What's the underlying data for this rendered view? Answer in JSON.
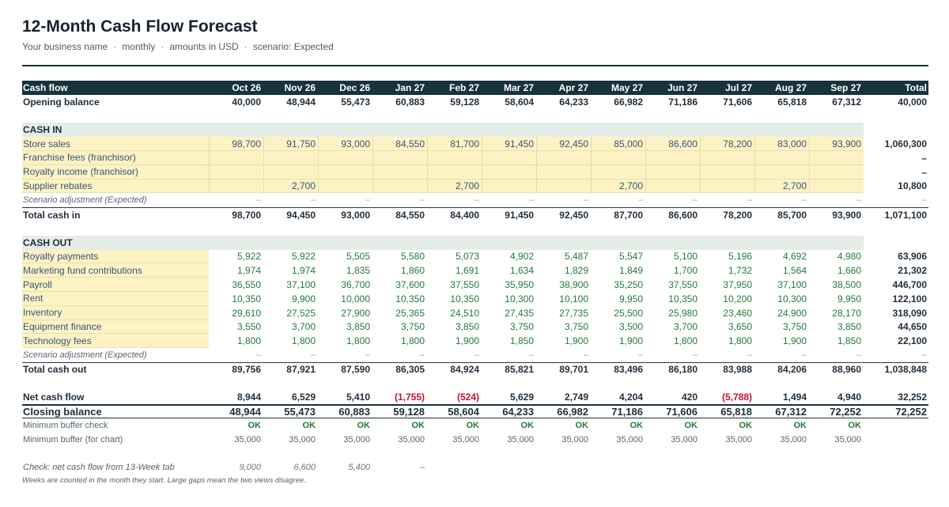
{
  "header": {
    "title": "12-Month Cash Flow Forecast",
    "subtitle": [
      "Your business name",
      "monthly",
      "amounts in USD",
      "scenario: Expected"
    ],
    "separator": "·"
  },
  "table": {
    "col_header": "Cash flow",
    "months": [
      "Oct 26",
      "Nov 26",
      "Dec 26",
      "Jan 27",
      "Feb 27",
      "Mar 27",
      "Apr 27",
      "May 27",
      "Jun 27",
      "Jul 27",
      "Aug 27",
      "Sep 27"
    ],
    "total_header": "Total",
    "opening": {
      "label": "Opening balance",
      "values": [
        "40,000",
        "48,944",
        "55,473",
        "60,883",
        "59,128",
        "58,604",
        "64,233",
        "66,982",
        "71,186",
        "71,606",
        "65,818",
        "67,312"
      ],
      "total": "40,000"
    },
    "cash_in": {
      "section_label": "CASH IN",
      "rows": [
        {
          "label": "Store sales",
          "values": [
            "98,700",
            "91,750",
            "93,000",
            "84,550",
            "81,700",
            "91,450",
            "92,450",
            "85,000",
            "86,600",
            "78,200",
            "83,000",
            "93,900"
          ],
          "total": "1,060,300"
        },
        {
          "label": "Franchise fees (franchisor)",
          "values": [
            "",
            "",
            "",
            "",
            "",
            "",
            "",
            "",
            "",
            "",
            "",
            ""
          ],
          "total": "–"
        },
        {
          "label": "Royalty income (franchisor)",
          "values": [
            "",
            "",
            "",
            "",
            "",
            "",
            "",
            "",
            "",
            "",
            "",
            ""
          ],
          "total": "–"
        },
        {
          "label": "Supplier rebates",
          "values": [
            "",
            "2,700",
            "",
            "",
            "2,700",
            "",
            "",
            "2,700",
            "",
            "",
            "2,700",
            ""
          ],
          "total": "10,800"
        }
      ],
      "adjustment": {
        "label": "Scenario adjustment (Expected)",
        "values": [
          "–",
          "–",
          "–",
          "–",
          "–",
          "–",
          "–",
          "–",
          "–",
          "–",
          "–",
          "–"
        ],
        "total": "–"
      },
      "total": {
        "label": "Total cash in",
        "values": [
          "98,700",
          "94,450",
          "93,000",
          "84,550",
          "84,400",
          "91,450",
          "92,450",
          "87,700",
          "86,600",
          "78,200",
          "85,700",
          "93,900"
        ],
        "total": "1,071,100"
      }
    },
    "cash_out": {
      "section_label": "CASH OUT",
      "rows": [
        {
          "label": "Royalty payments",
          "values": [
            "5,922",
            "5,922",
            "5,505",
            "5,580",
            "5,073",
            "4,902",
            "5,487",
            "5,547",
            "5,100",
            "5,196",
            "4,692",
            "4,980"
          ],
          "total": "63,906"
        },
        {
          "label": "Marketing fund contributions",
          "values": [
            "1,974",
            "1,974",
            "1,835",
            "1,860",
            "1,691",
            "1,634",
            "1,829",
            "1,849",
            "1,700",
            "1,732",
            "1,564",
            "1,660"
          ],
          "total": "21,302"
        },
        {
          "label": "Payroll",
          "values": [
            "36,550",
            "37,100",
            "36,700",
            "37,600",
            "37,550",
            "35,950",
            "38,900",
            "35,250",
            "37,550",
            "37,950",
            "37,100",
            "38,500"
          ],
          "total": "446,700"
        },
        {
          "label": "Rent",
          "values": [
            "10,350",
            "9,900",
            "10,000",
            "10,350",
            "10,350",
            "10,300",
            "10,100",
            "9,950",
            "10,350",
            "10,200",
            "10,300",
            "9,950"
          ],
          "total": "122,100"
        },
        {
          "label": "Inventory",
          "values": [
            "29,610",
            "27,525",
            "27,900",
            "25,365",
            "24,510",
            "27,435",
            "27,735",
            "25,500",
            "25,980",
            "23,460",
            "24,900",
            "28,170"
          ],
          "total": "318,090"
        },
        {
          "label": "Equipment finance",
          "values": [
            "3,550",
            "3,700",
            "3,850",
            "3,750",
            "3,850",
            "3,750",
            "3,750",
            "3,500",
            "3,700",
            "3,650",
            "3,750",
            "3,850"
          ],
          "total": "44,650"
        },
        {
          "label": "Technology fees",
          "values": [
            "1,800",
            "1,800",
            "1,800",
            "1,800",
            "1,900",
            "1,850",
            "1,900",
            "1,900",
            "1,800",
            "1,800",
            "1,900",
            "1,850"
          ],
          "total": "22,100"
        }
      ],
      "adjustment": {
        "label": "Scenario adjustment (Expected)",
        "values": [
          "–",
          "–",
          "–",
          "–",
          "–",
          "–",
          "–",
          "–",
          "–",
          "–",
          "–",
          "–"
        ],
        "total": "–"
      },
      "total": {
        "label": "Total cash out",
        "values": [
          "89,756",
          "87,921",
          "87,590",
          "86,305",
          "84,924",
          "85,821",
          "89,701",
          "83,496",
          "86,180",
          "83,988",
          "84,206",
          "88,960"
        ],
        "total": "1,038,848"
      }
    },
    "net": {
      "label": "Net cash flow",
      "values": [
        "8,944",
        "6,529",
        "5,410",
        "(1,755)",
        "(524)",
        "5,629",
        "2,749",
        "4,204",
        "420",
        "(5,788)",
        "1,494",
        "4,940"
      ],
      "total": "32,252"
    },
    "closing": {
      "label": "Closing balance",
      "values": [
        "48,944",
        "55,473",
        "60,883",
        "59,128",
        "58,604",
        "64,233",
        "66,982",
        "71,186",
        "71,606",
        "65,818",
        "67,312",
        "72,252"
      ],
      "total": "72,252"
    },
    "buffer_check": {
      "label": "Minimum buffer check",
      "values": [
        "OK",
        "OK",
        "OK",
        "OK",
        "OK",
        "OK",
        "OK",
        "OK",
        "OK",
        "OK",
        "OK",
        "OK"
      ],
      "total": ""
    },
    "buffer_chart": {
      "label": "Minimum buffer (for chart)",
      "values": [
        "35,000",
        "35,000",
        "35,000",
        "35,000",
        "35,000",
        "35,000",
        "35,000",
        "35,000",
        "35,000",
        "35,000",
        "35,000",
        "35,000"
      ],
      "total": ""
    },
    "check13": {
      "label": "Check: net cash flow from 13-Week tab",
      "values": [
        "9,000",
        "6,600",
        "5,400",
        "–",
        "",
        "",
        "",
        "",
        "",
        "",
        "",
        ""
      ],
      "total": ""
    }
  },
  "note": "Weeks are counted in the month they start. Large gaps mean the two views disagree.",
  "colors": {
    "header_bg": "#17333c",
    "input_fill": "#fdf2c4",
    "section_fill": "#e4ede7",
    "ok_green": "#1f7a3d",
    "negative_red": "#c8102e"
  }
}
